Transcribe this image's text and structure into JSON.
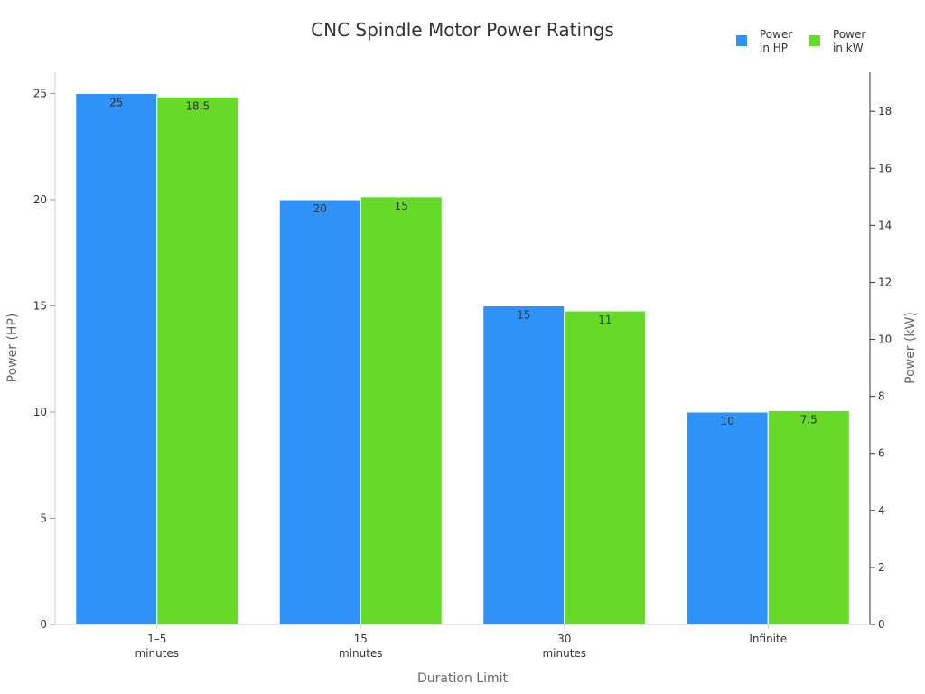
{
  "chart_data": {
    "type": "bar",
    "title": "CNC Spindle Motor Power Ratings",
    "xlabel": "Duration Limit",
    "ylabel": "Power (HP)",
    "y2label": "Power (kW)",
    "categories": [
      [
        "1–5",
        "minutes"
      ],
      [
        "15",
        "minutes"
      ],
      [
        "30",
        "minutes"
      ],
      [
        "Infinite"
      ]
    ],
    "series": [
      {
        "name": [
          "Power",
          "in HP"
        ],
        "axis": "left",
        "values": [
          25,
          20,
          15,
          10
        ],
        "labels": [
          "25",
          "20",
          "15",
          "10"
        ],
        "color": "#2f92f8"
      },
      {
        "name": [
          "Power",
          "in kW"
        ],
        "axis": "right",
        "values": [
          18.5,
          15,
          11,
          7.5
        ],
        "labels": [
          "18.5",
          "15",
          "11",
          "7.5"
        ],
        "color": "#66d929"
      }
    ],
    "ylim": [
      0,
      26
    ],
    "y2lim": [
      0,
      19.37
    ],
    "yticks": [
      0,
      5,
      10,
      15,
      20,
      25
    ],
    "y2ticks": [
      0,
      2,
      4,
      6,
      8,
      10,
      12,
      14,
      16,
      18
    ],
    "legend_position": "top-right",
    "grid": false
  }
}
